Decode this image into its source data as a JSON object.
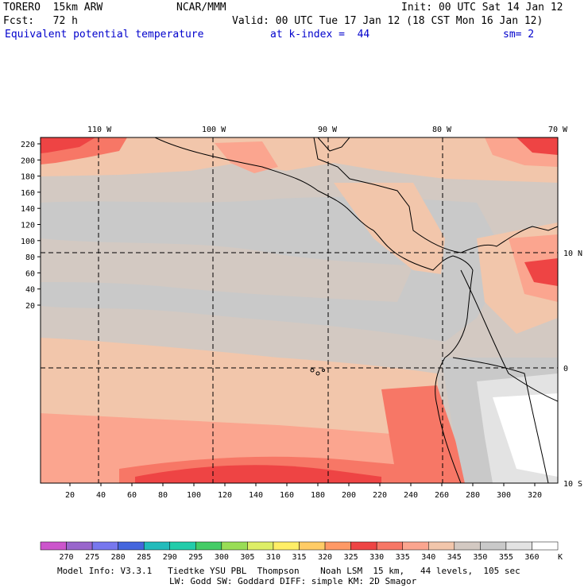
{
  "header": {
    "model": "TORERO  15km ARW",
    "org": "NCAR/MMM",
    "init": "Init: 00 UTC Sat 14 Jan 12",
    "fcst": "Fcst:   72 h",
    "valid": "Valid: 00 UTC Tue 17 Jan 12 (18 CST Mon 16 Jan 12)",
    "field": "Equivalent potential temperature",
    "level": "at k-index =  44",
    "smooth": "sm= 2"
  },
  "map": {
    "top_lon_labels": [
      "110 W",
      "100 W",
      "90 W",
      "80 W",
      "70 W"
    ],
    "right_lat_labels": [
      "10 N",
      "0",
      "10 S"
    ],
    "left_axis_ticks": [
      "220",
      "200",
      "180",
      "160",
      "140",
      "120",
      "100",
      "80",
      "60",
      "40",
      "20"
    ],
    "bottom_axis_ticks": [
      "20",
      "40",
      "60",
      "80",
      "100",
      "120",
      "140",
      "160",
      "180",
      "200",
      "220",
      "240",
      "260",
      "280",
      "300",
      "320"
    ],
    "colors": {
      "c330": "#ee4444",
      "c335": "#f77766",
      "c340": "#fba58f",
      "c345": "#f2c6ab",
      "c350": "#d3c9c2",
      "c355": "#c9c9c9",
      "c360": "#e3e3e3",
      "c365": "#ffffff"
    }
  },
  "colorbar": {
    "levels": [
      "270",
      "275",
      "280",
      "285",
      "290",
      "295",
      "300",
      "305",
      "310",
      "315",
      "320",
      "325",
      "330",
      "335",
      "340",
      "345",
      "350",
      "355",
      "360"
    ],
    "unit": "K",
    "colors": [
      "#cc55cc",
      "#9966cc",
      "#7777ee",
      "#4466dd",
      "#22bbbb",
      "#22ccaa",
      "#44cc66",
      "#99dd55",
      "#ddee66",
      "#ffee66",
      "#ffcc66",
      "#ff9966",
      "#ee4444",
      "#f77766",
      "#fba58f",
      "#f2c6ab",
      "#d3c9c2",
      "#c9c9c9",
      "#e3e3e3",
      "#ffffff"
    ]
  },
  "footer": {
    "line1": "Model Info: V3.3.1   Tiedtke YSU PBL  Thompson    Noah LSM  15 km,   44 levels,  105 sec",
    "line2": "LW: Godd SW: Goddard DIFF: simple KM: 2D Smagor"
  }
}
